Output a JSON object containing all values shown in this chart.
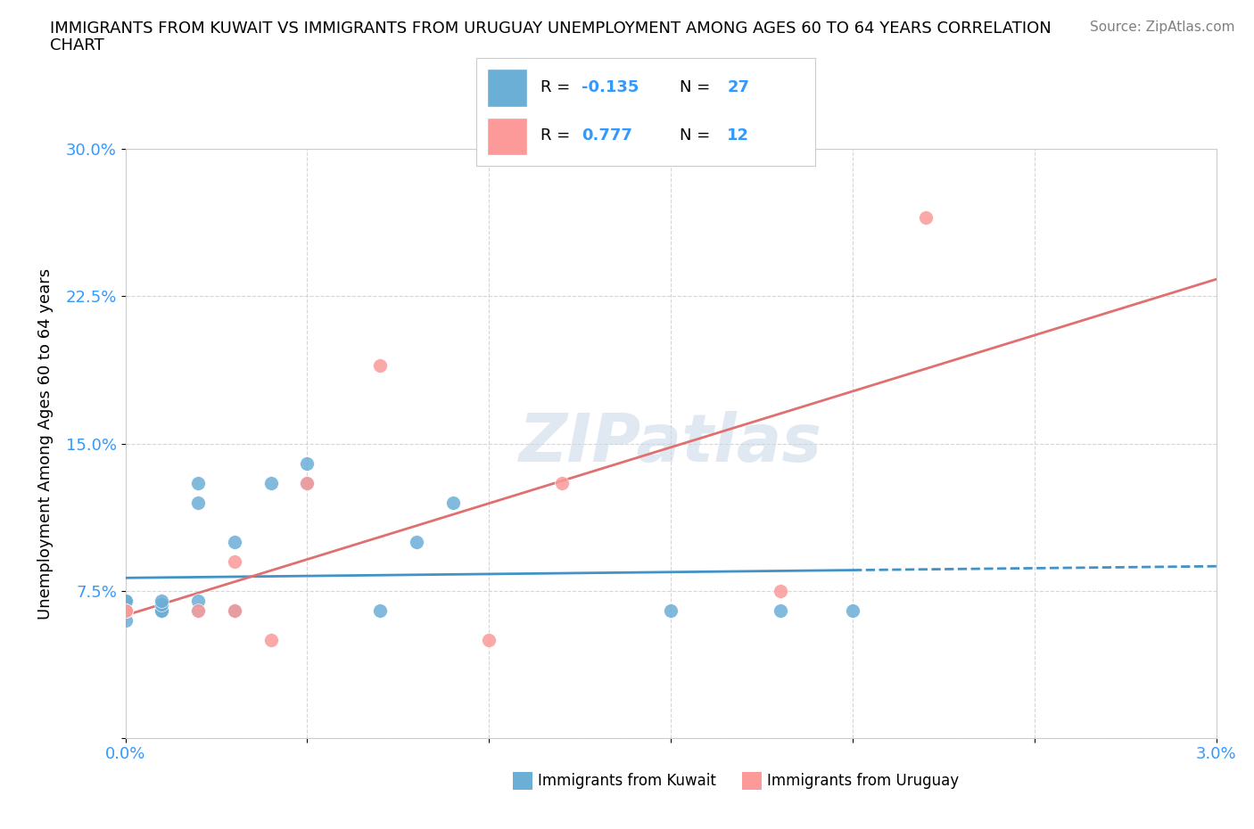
{
  "title_line1": "IMMIGRANTS FROM KUWAIT VS IMMIGRANTS FROM URUGUAY UNEMPLOYMENT AMONG AGES 60 TO 64 YEARS CORRELATION",
  "title_line2": "CHART",
  "source": "Source: ZipAtlas.com",
  "ylabel": "Unemployment Among Ages 60 to 64 years",
  "xlim": [
    0.0,
    0.03
  ],
  "ylim": [
    0.0,
    0.3
  ],
  "xticks": [
    0.0,
    0.005,
    0.01,
    0.015,
    0.02,
    0.025,
    0.03
  ],
  "yticks": [
    0.0,
    0.075,
    0.15,
    0.225,
    0.3
  ],
  "xticklabels": [
    "0.0%",
    "",
    "",
    "",
    "",
    "",
    "3.0%"
  ],
  "yticklabels": [
    "",
    "7.5%",
    "15.0%",
    "22.5%",
    "30.0%"
  ],
  "kuwait_color": "#6baed6",
  "uruguay_color": "#fb9a99",
  "kuwait_line_color": "#4292c6",
  "uruguay_line_color": "#e07070",
  "kuwait_R": -0.135,
  "kuwait_N": 27,
  "uruguay_R": 0.777,
  "uruguay_N": 12,
  "watermark": "ZIPatlas",
  "kuwait_x": [
    0.0,
    0.0,
    0.0,
    0.0,
    0.0,
    0.0,
    0.0,
    0.001,
    0.001,
    0.001,
    0.001,
    0.002,
    0.002,
    0.002,
    0.002,
    0.003,
    0.003,
    0.003,
    0.004,
    0.005,
    0.005,
    0.007,
    0.008,
    0.009,
    0.015,
    0.018,
    0.02
  ],
  "kuwait_y": [
    0.06,
    0.065,
    0.07,
    0.065,
    0.065,
    0.07,
    0.065,
    0.065,
    0.065,
    0.068,
    0.07,
    0.065,
    0.07,
    0.12,
    0.13,
    0.065,
    0.065,
    0.1,
    0.13,
    0.14,
    0.13,
    0.065,
    0.1,
    0.12,
    0.065,
    0.065,
    0.065
  ],
  "uruguay_x": [
    0.0,
    0.0,
    0.002,
    0.003,
    0.003,
    0.004,
    0.005,
    0.007,
    0.01,
    0.012,
    0.018,
    0.022
  ],
  "uruguay_y": [
    0.065,
    0.065,
    0.065,
    0.065,
    0.09,
    0.05,
    0.13,
    0.19,
    0.05,
    0.13,
    0.075,
    0.265
  ]
}
